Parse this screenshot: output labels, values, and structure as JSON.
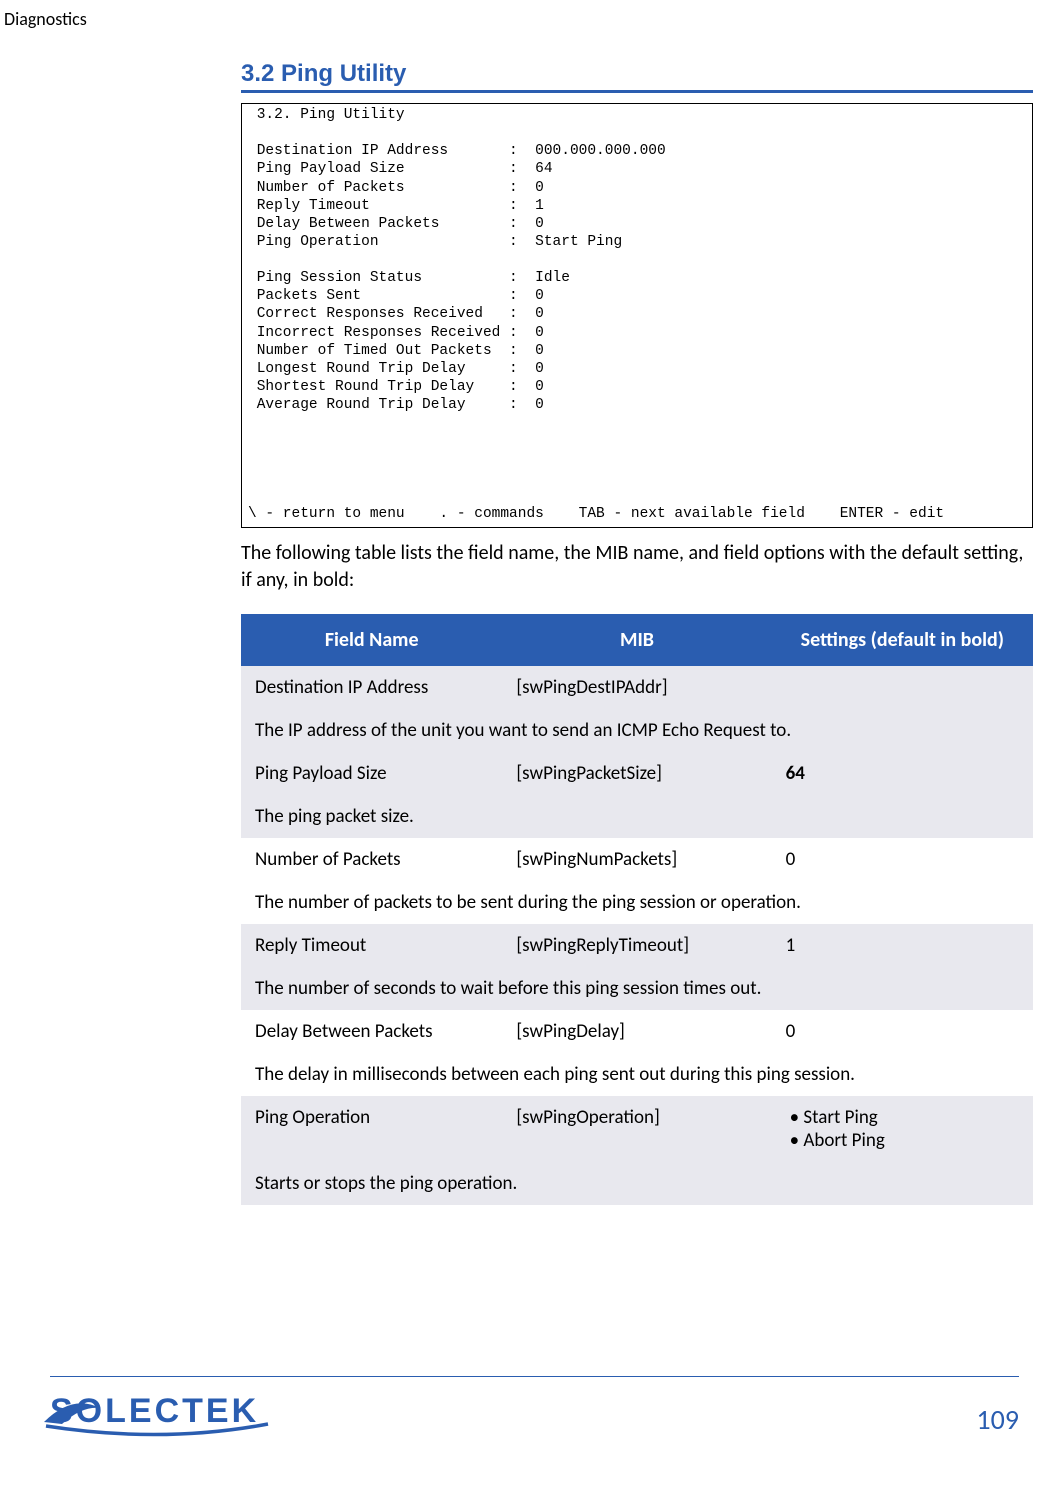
{
  "header": {
    "text": "Diagnostics"
  },
  "section": {
    "title": "3.2 Ping Utility"
  },
  "terminal": {
    "title": "3.2. Ping Utility",
    "rows": [
      {
        "label": "Destination IP Address",
        "value": "000.000.000.000"
      },
      {
        "label": "Ping Payload Size",
        "value": "64"
      },
      {
        "label": "Number of Packets",
        "value": "0"
      },
      {
        "label": "Reply Timeout",
        "value": "1"
      },
      {
        "label": "Delay Between Packets",
        "value": "0"
      },
      {
        "label": "Ping Operation",
        "value": "Start Ping"
      }
    ],
    "status_rows": [
      {
        "label": "Ping Session Status",
        "value": "Idle"
      },
      {
        "label": "Packets Sent",
        "value": "0"
      },
      {
        "label": "Correct Responses Received",
        "value": "0"
      },
      {
        "label": "Incorrect Responses Received",
        "value": "0"
      },
      {
        "label": "Number of Timed Out Packets",
        "value": "0"
      },
      {
        "label": "Longest Round Trip Delay",
        "value": "0"
      },
      {
        "label": "Shortest Round Trip Delay",
        "value": "0"
      },
      {
        "label": "Average Round Trip Delay",
        "value": "0"
      }
    ],
    "footer": "\\ - return to menu    . - commands    TAB - next available field    ENTER - edit"
  },
  "intro_text": "The following table lists the field name, the MIB name, and field options with the default setting, if any, in bold:",
  "table": {
    "headers": [
      "Field Name",
      "MIB",
      "Settings (default in bold)"
    ],
    "entries": [
      {
        "field": "Destination IP Address",
        "mib": "[swPingDestIPAddr]",
        "setting": "",
        "bold": false,
        "shade": "gray",
        "desc": "The IP address of the unit you want to send an ICMP Echo Request to."
      },
      {
        "field": "Ping Payload Size",
        "mib": "[swPingPacketSize]",
        "setting": "64",
        "bold": true,
        "shade": "gray",
        "desc": "The ping packet size."
      },
      {
        "field": "Number of Packets",
        "mib": "[swPingNumPackets]",
        "setting": "0",
        "bold": false,
        "shade": "white",
        "desc": "The number of packets to be sent during the ping session or operation."
      },
      {
        "field": "Reply Timeout",
        "mib": "[swPingReplyTimeout]",
        "setting": "1",
        "bold": false,
        "shade": "gray",
        "desc": "The number of seconds to wait before this ping session times out."
      },
      {
        "field": "Delay Between Packets",
        "mib": "[swPingDelay]",
        "setting": "0",
        "bold": false,
        "shade": "white",
        "desc": "The delay in milliseconds between each ping sent out during this ping session."
      },
      {
        "field": "Ping Operation",
        "mib": "[swPingOperation]",
        "setting_list": [
          "Start Ping",
          "Abort Ping"
        ],
        "shade": "gray",
        "desc": "Starts or stops the ping operation."
      }
    ]
  },
  "footer": {
    "page_number": "109",
    "logo_text": "SOLECTEK",
    "accent_color": "#2a5db0",
    "logo_color": "#2a5db0"
  }
}
